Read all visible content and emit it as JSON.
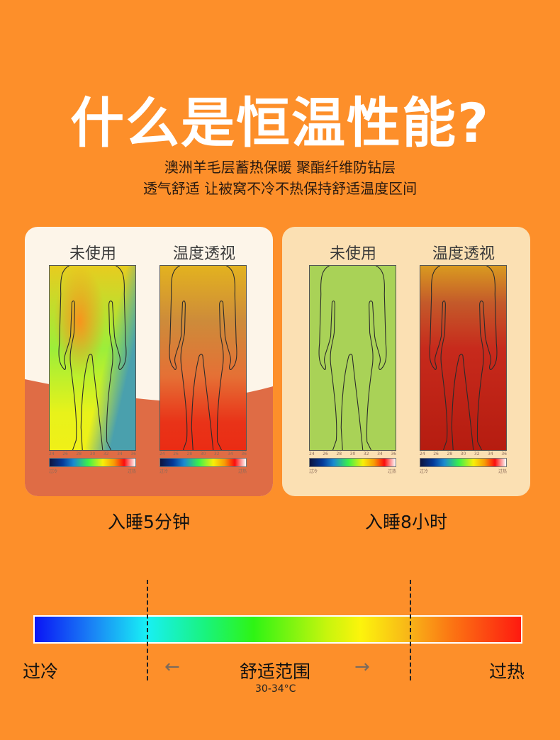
{
  "title": "什么是恒温性能?",
  "subtitle_lines": [
    "澳洲羊毛层蓄热保暖 聚酯纤维防钻层",
    "透气舒适 让被窝不冷不热保持舒适温度区间"
  ],
  "panels": [
    {
      "caption": "入睡5分钟",
      "left_label": "未使用",
      "right_label": "温度透视"
    },
    {
      "caption": "入睡8小时",
      "left_label": "未使用",
      "right_label": "温度透视"
    }
  ],
  "scale": {
    "ticks": [
      "24",
      "26",
      "28",
      "30",
      "32",
      "34",
      "36"
    ],
    "low": "过冷",
    "high": "过热"
  },
  "bottom": {
    "cold": "过冷",
    "comfort": "舒适范围",
    "range": "30-34°C",
    "hot": "过热",
    "left_arrow": "←",
    "right_arrow": "→"
  },
  "colors": {
    "background": "#fd8f2a",
    "card1": "#fdf5e9",
    "card1_wave": "#df6c45",
    "card2": "#fbe0b3"
  }
}
